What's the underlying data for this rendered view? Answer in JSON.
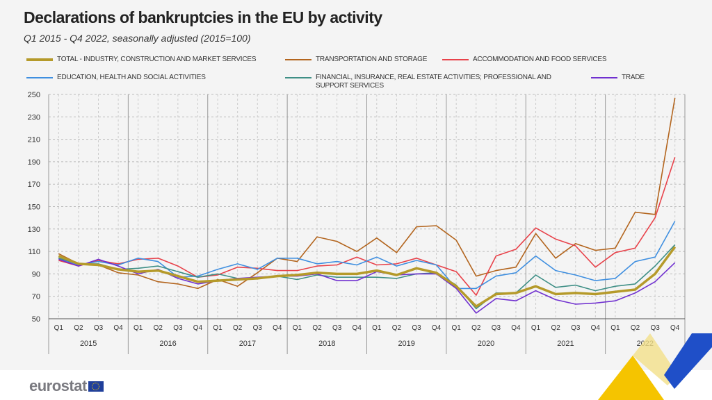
{
  "title": "Declarations of bankruptcies in the EU by activity",
  "subtitle": "Q1 2015 - Q4 2022, seasonally adjusted  (2015=100)",
  "logo_text": "eurostat",
  "chart_data": {
    "type": "line",
    "title": "Declarations of bankruptcies in the EU by activity",
    "subtitle": "Q1 2015 - Q4 2022, seasonally adjusted  (2015=100)",
    "years": [
      "2015",
      "2016",
      "2017",
      "2018",
      "2019",
      "2020",
      "2021",
      "2022"
    ],
    "quarters": [
      "Q1",
      "Q2",
      "Q3",
      "Q4"
    ],
    "ylim": [
      50,
      250
    ],
    "yticks": [
      50,
      70,
      90,
      110,
      130,
      150,
      170,
      190,
      210,
      230,
      250
    ],
    "grid": true,
    "legend_position": "top",
    "series": [
      {
        "name": "TOTAL - INDUSTRY, CONSTRUCTION AND MARKET SERVICES",
        "color": "#b59a2a",
        "values": [
          106,
          99,
          98,
          94,
          92,
          93,
          88,
          83,
          84,
          85,
          86,
          88,
          89,
          91,
          90,
          90,
          93,
          89,
          95,
          91,
          79,
          61,
          72,
          73,
          79,
          72,
          73,
          72,
          74,
          76,
          90,
          114
        ]
      },
      {
        "name": "TRANSPORTATION AND STORAGE",
        "color": "#b3651e",
        "values": [
          108,
          99,
          98,
          91,
          89,
          83,
          81,
          77,
          85,
          79,
          91,
          104,
          101,
          123,
          119,
          110,
          122,
          109,
          132,
          133,
          120,
          88,
          93,
          96,
          126,
          104,
          117,
          111,
          113,
          145,
          143,
          247
        ]
      },
      {
        "name": "ACCOMMODATION AND FOOD SERVICES",
        "color": "#e8424a",
        "values": [
          102,
          97,
          102,
          99,
          103,
          104,
          97,
          87,
          89,
          96,
          95,
          93,
          93,
          97,
          98,
          105,
          98,
          99,
          104,
          98,
          92,
          71,
          106,
          112,
          131,
          121,
          115,
          96,
          109,
          113,
          140,
          194
        ]
      },
      {
        "name": "EDUCATION,  HEALTH AND SOCIAL ACTIVITIES",
        "color": "#3f8fe0",
        "values": [
          104,
          98,
          101,
          98,
          104,
          101,
          87,
          88,
          94,
          99,
          94,
          104,
          104,
          99,
          101,
          98,
          105,
          97,
          102,
          98,
          77,
          77,
          88,
          91,
          106,
          93,
          89,
          84,
          86,
          101,
          105,
          137
        ]
      },
      {
        "name": "FINANCIAL, INSURANCE, REAL ESTATE ACTIVITIES; PROFESSIONAL AND SUPPORT SERVICES",
        "color": "#3f8f86",
        "values": [
          104,
          99,
          99,
          94,
          95,
          97,
          92,
          87,
          90,
          86,
          86,
          88,
          85,
          89,
          87,
          87,
          87,
          86,
          90,
          91,
          80,
          59,
          73,
          73,
          89,
          78,
          80,
          75,
          79,
          81,
          97,
          116
        ]
      },
      {
        "name": "TRADE",
        "color": "#7030d0",
        "values": [
          103,
          97,
          103,
          97,
          90,
          94,
          86,
          81,
          84,
          86,
          87,
          88,
          88,
          90,
          84,
          84,
          92,
          89,
          90,
          90,
          77,
          55,
          68,
          66,
          75,
          67,
          63,
          64,
          66,
          73,
          83,
          100
        ]
      }
    ]
  }
}
